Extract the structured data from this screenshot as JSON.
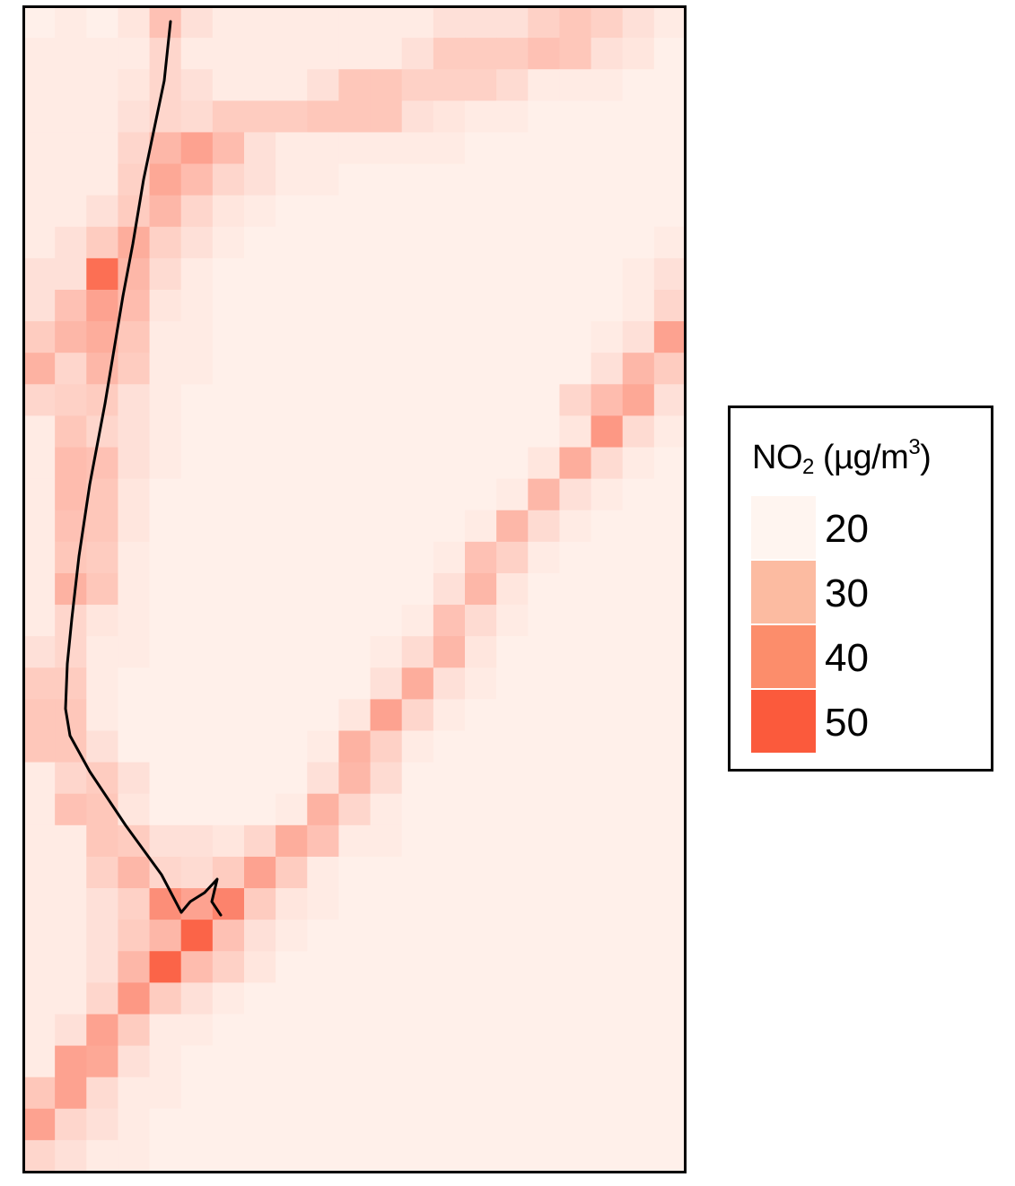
{
  "legend": {
    "title_prefix": "NO",
    "title_subscript": "2",
    "title_unit_prefix": " (µg/m",
    "title_superscript": "3",
    "title_suffix": ")",
    "items": [
      {
        "label": "20",
        "color": "#FFF5F0"
      },
      {
        "label": "30",
        "color": "#FCBBA1"
      },
      {
        "label": "40",
        "color": "#FC8D6B"
      },
      {
        "label": "50",
        "color": "#FB5A3C"
      }
    ]
  },
  "map": {
    "grid_cols": 21,
    "grid_rows": 37,
    "color_scale": {
      "min": 20,
      "max": 50,
      "low_color": "#FFF5F0",
      "high_color": "#FB5A3C"
    },
    "raster_values": [
      [
        21,
        22,
        21,
        23,
        30,
        24,
        22,
        22,
        22,
        22,
        22,
        22,
        22,
        24,
        24,
        24,
        27,
        29,
        27,
        24,
        22
      ],
      [
        22,
        22,
        22,
        22,
        26,
        22,
        22,
        22,
        22,
        22,
        22,
        22,
        24,
        28,
        28,
        28,
        30,
        29,
        24,
        23,
        21
      ],
      [
        22,
        22,
        22,
        23,
        26,
        24,
        22,
        22,
        22,
        24,
        29,
        29,
        27,
        27,
        27,
        25,
        22,
        22,
        22,
        21,
        21
      ],
      [
        22,
        22,
        22,
        24,
        26,
        25,
        28,
        28,
        28,
        29,
        29,
        29,
        24,
        23,
        22,
        22,
        21,
        21,
        21,
        21,
        21
      ],
      [
        22,
        22,
        22,
        26,
        32,
        36,
        31,
        24,
        22,
        22,
        22,
        22,
        22,
        22,
        21,
        21,
        21,
        21,
        21,
        21,
        21
      ],
      [
        22,
        22,
        22,
        27,
        35,
        31,
        26,
        24,
        22,
        22,
        21,
        21,
        21,
        21,
        21,
        21,
        21,
        21,
        21,
        21,
        21
      ],
      [
        22,
        22,
        24,
        28,
        32,
        26,
        23,
        22,
        21,
        21,
        21,
        21,
        21,
        21,
        21,
        21,
        21,
        21,
        21,
        21,
        21
      ],
      [
        22,
        24,
        28,
        34,
        27,
        24,
        22,
        21,
        21,
        21,
        21,
        21,
        21,
        21,
        21,
        21,
        21,
        21,
        21,
        21,
        22
      ],
      [
        24,
        24,
        46,
        32,
        25,
        22,
        21,
        21,
        21,
        21,
        21,
        21,
        21,
        21,
        21,
        21,
        21,
        21,
        21,
        22,
        24
      ],
      [
        24,
        30,
        36,
        31,
        23,
        22,
        21,
        21,
        21,
        21,
        21,
        21,
        21,
        21,
        21,
        21,
        21,
        21,
        21,
        22,
        26
      ],
      [
        28,
        32,
        34,
        29,
        22,
        22,
        21,
        21,
        21,
        21,
        21,
        21,
        21,
        21,
        21,
        21,
        21,
        21,
        22,
        24,
        36
      ],
      [
        33,
        26,
        32,
        28,
        22,
        22,
        21,
        21,
        21,
        21,
        21,
        21,
        21,
        21,
        21,
        21,
        21,
        21,
        24,
        32,
        28
      ],
      [
        26,
        27,
        28,
        24,
        22,
        21,
        21,
        21,
        21,
        21,
        21,
        21,
        21,
        21,
        21,
        21,
        21,
        26,
        31,
        35,
        24
      ],
      [
        22,
        29,
        26,
        24,
        22,
        21,
        21,
        21,
        21,
        21,
        21,
        21,
        21,
        21,
        21,
        21,
        21,
        23,
        38,
        25,
        22
      ],
      [
        22,
        31,
        30,
        24,
        22,
        21,
        21,
        21,
        21,
        21,
        21,
        21,
        21,
        21,
        21,
        21,
        23,
        34,
        25,
        22,
        21
      ],
      [
        22,
        31,
        29,
        23,
        21,
        21,
        21,
        21,
        21,
        21,
        21,
        21,
        21,
        21,
        21,
        22,
        32,
        24,
        22,
        21,
        21
      ],
      [
        22,
        30,
        29,
        23,
        21,
        21,
        21,
        21,
        21,
        21,
        21,
        21,
        21,
        21,
        22,
        32,
        25,
        22,
        21,
        21,
        21
      ],
      [
        22,
        29,
        28,
        22,
        21,
        21,
        21,
        21,
        21,
        21,
        21,
        21,
        21,
        22,
        30,
        27,
        22,
        21,
        21,
        21,
        21
      ],
      [
        22,
        33,
        29,
        22,
        21,
        21,
        21,
        21,
        21,
        21,
        21,
        21,
        21,
        24,
        32,
        23,
        21,
        21,
        21,
        21,
        21
      ],
      [
        22,
        26,
        23,
        22,
        21,
        21,
        21,
        21,
        21,
        21,
        21,
        21,
        22,
        30,
        25,
        22,
        21,
        21,
        21,
        21,
        21
      ],
      [
        24,
        26,
        22,
        22,
        21,
        21,
        21,
        21,
        21,
        21,
        21,
        22,
        25,
        32,
        23,
        21,
        21,
        21,
        21,
        21,
        21
      ],
      [
        28,
        28,
        22,
        21,
        21,
        21,
        21,
        21,
        21,
        21,
        21,
        24,
        34,
        24,
        22,
        21,
        21,
        21,
        21,
        21,
        21
      ],
      [
        29,
        29,
        22,
        21,
        21,
        21,
        21,
        21,
        21,
        21,
        23,
        36,
        26,
        22,
        21,
        21,
        21,
        21,
        21,
        21,
        21
      ],
      [
        29,
        29,
        24,
        21,
        21,
        21,
        21,
        21,
        21,
        22,
        33,
        27,
        22,
        21,
        21,
        21,
        21,
        21,
        21,
        21,
        21
      ],
      [
        22,
        26,
        28,
        24,
        21,
        21,
        21,
        21,
        21,
        24,
        32,
        25,
        21,
        21,
        21,
        21,
        21,
        21,
        21,
        21,
        21
      ],
      [
        22,
        30,
        29,
        23,
        21,
        21,
        21,
        21,
        22,
        33,
        26,
        22,
        21,
        21,
        21,
        21,
        21,
        21,
        21,
        21,
        21
      ],
      [
        22,
        22,
        29,
        28,
        24,
        24,
        23,
        26,
        34,
        30,
        22,
        22,
        21,
        21,
        21,
        21,
        21,
        21,
        21,
        21,
        21
      ],
      [
        22,
        22,
        27,
        32,
        26,
        25,
        28,
        36,
        28,
        22,
        21,
        21,
        21,
        21,
        21,
        21,
        21,
        21,
        21,
        21,
        21
      ],
      [
        22,
        22,
        24,
        27,
        40,
        36,
        42,
        28,
        23,
        22,
        21,
        21,
        21,
        21,
        21,
        21,
        21,
        21,
        21,
        21,
        21
      ],
      [
        22,
        22,
        24,
        28,
        32,
        48,
        30,
        24,
        22,
        21,
        21,
        21,
        21,
        21,
        21,
        21,
        21,
        21,
        21,
        21,
        21
      ],
      [
        22,
        22,
        24,
        32,
        48,
        31,
        27,
        23,
        21,
        21,
        21,
        21,
        21,
        21,
        21,
        21,
        21,
        21,
        21,
        21,
        21
      ],
      [
        22,
        22,
        26,
        38,
        28,
        24,
        22,
        21,
        21,
        21,
        21,
        21,
        21,
        21,
        21,
        21,
        21,
        21,
        21,
        21,
        21
      ],
      [
        22,
        24,
        36,
        28,
        22,
        22,
        21,
        21,
        21,
        21,
        21,
        21,
        21,
        21,
        21,
        21,
        21,
        21,
        21,
        21,
        21
      ],
      [
        22,
        36,
        35,
        24,
        22,
        21,
        21,
        21,
        21,
        21,
        21,
        21,
        21,
        21,
        21,
        21,
        21,
        21,
        21,
        21,
        21
      ],
      [
        29,
        36,
        25,
        22,
        22,
        21,
        21,
        21,
        21,
        21,
        21,
        21,
        21,
        21,
        21,
        21,
        21,
        21,
        21,
        21,
        21
      ],
      [
        36,
        26,
        24,
        22,
        21,
        21,
        21,
        21,
        21,
        21,
        21,
        21,
        21,
        21,
        21,
        21,
        21,
        21,
        21,
        21,
        21
      ],
      [
        26,
        24,
        22,
        22,
        21,
        21,
        21,
        21,
        21,
        21,
        21,
        21,
        21,
        21,
        21,
        21,
        21,
        21,
        21,
        21,
        21
      ]
    ]
  }
}
